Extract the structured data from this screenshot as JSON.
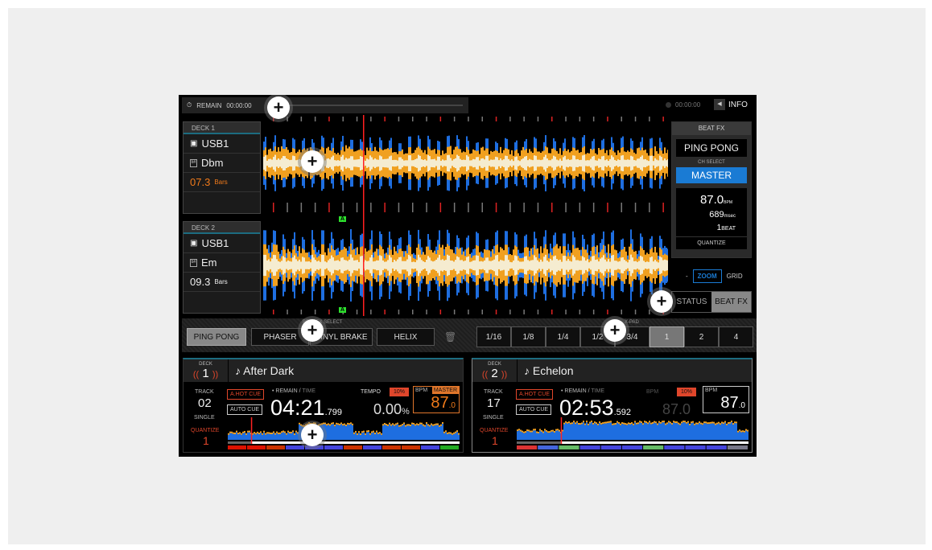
{
  "topbar": {
    "remain_label": "REMAIN",
    "remain_time": "00:00:00",
    "right_time": "00:00:00",
    "info_label": "INFO"
  },
  "decks": [
    {
      "header": "DECK 1",
      "source": "USB1",
      "key": "Dbm",
      "bars_value": "07.3",
      "bars_unit": "Bars",
      "bars_color": "#f07a1a"
    },
    {
      "header": "DECK 2",
      "source": "USB1",
      "key": "Em",
      "bars_value": "09.3",
      "bars_unit": "Bars",
      "bars_color": "#eeeeee"
    }
  ],
  "beat_fx": {
    "header": "BEAT FX",
    "effect": "PING PONG",
    "ch_select_label": "CH SELECT",
    "channel": "MASTER",
    "bpm": "87.0",
    "bpm_unit": "BPM",
    "msec": "689",
    "msec_unit": "msec",
    "beat": "1",
    "beat_unit": "BEAT",
    "quantize": "QUANTIZE"
  },
  "view": {
    "minus": "-",
    "zoom": "ZOOM",
    "grid": "GRID",
    "tabs": [
      "STATUS",
      "BEAT FX"
    ],
    "active_tab": "BEAT FX"
  },
  "fx_select": {
    "label": "BEAT FX SELECT",
    "items": [
      "PING PONG",
      "PHASER",
      "VINYL BRAKE",
      "HELIX"
    ],
    "active": "PING PONG"
  },
  "xpad": {
    "label": "X-PAD",
    "items": [
      "1/16",
      "1/8",
      "1/4",
      "1/2",
      "3/4",
      "1",
      "2",
      "4"
    ],
    "active": "1"
  },
  "cue_marker": "A",
  "players": [
    {
      "deck_label": "DECK",
      "deck_num": "1",
      "title": "After Dark",
      "track_label": "TRACK",
      "track": "02",
      "mode": "SINGLE",
      "quantize_label": "QUANTIZE",
      "quantize": "1",
      "hot_cue": "A.HOT CUE",
      "auto_cue": "AUTO CUE",
      "remain_label": "• REMAIN / ",
      "time_label": "TIME",
      "time_main": "04:21",
      "time_ms": ".799",
      "tempo_label": "TEMPO",
      "tempo_range": "10%",
      "tempo": "0.00",
      "tempo_unit": "%",
      "bpm_label": "BPM",
      "master_label": "MASTER",
      "bpm": "87",
      "bpm_dec": ".0",
      "progress": 0.1
    },
    {
      "deck_label": "DECK",
      "deck_num": "2",
      "title": "Echelon",
      "track_label": "TRACK",
      "track": "17",
      "mode": "SINGLE",
      "quantize_label": "QUANTIZE",
      "quantize": "1",
      "hot_cue": "A.HOT CUE",
      "auto_cue": "AUTO CUE",
      "remain_label": "• REMAIN / ",
      "time_label": "TIME",
      "time_main": "02:53",
      "time_ms": ".592",
      "tempo_label": "BPM",
      "tempo_range": "10%",
      "tempo": "87.0",
      "bpm_label": "BPM",
      "bpm": "87",
      "bpm_dec": ".0",
      "progress": 0.19
    }
  ],
  "colors": {
    "accent": "#1a7bd4",
    "alert": "#e0462b",
    "playhead": "#ff2020",
    "wave_blue": "#1e6ee0",
    "wave_orange": "#f0a020",
    "wave_cream": "#f5ecd0"
  }
}
